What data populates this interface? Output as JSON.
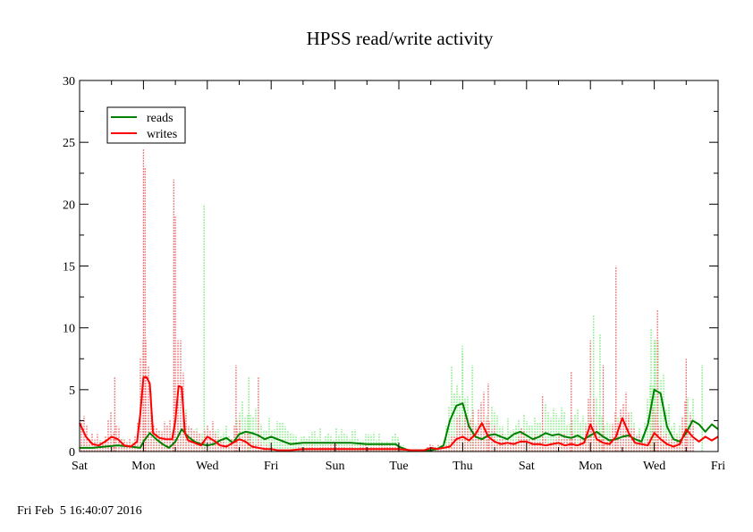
{
  "chart_data": {
    "type": "line",
    "title": "HPSS read/write activity",
    "xlabel": "",
    "ylabel": "",
    "ylim": [
      0,
      30
    ],
    "xlim": [
      0,
      20
    ],
    "x_unit": "days",
    "y_ticks": [
      "0",
      "5",
      "10",
      "15",
      "20",
      "25",
      "30"
    ],
    "x_ticks": [
      {
        "label": "Sat",
        "x": 0
      },
      {
        "label": "Mon",
        "x": 2
      },
      {
        "label": "Wed",
        "x": 4
      },
      {
        "label": "Fri",
        "x": 6
      },
      {
        "label": "Sun",
        "x": 8
      },
      {
        "label": "Tue",
        "x": 10
      },
      {
        "label": "Thu",
        "x": 12
      },
      {
        "label": "Sat",
        "x": 14
      },
      {
        "label": "Mon",
        "x": 16
      },
      {
        "label": "Wed",
        "x": 18
      },
      {
        "label": "Fri",
        "x": 20
      }
    ],
    "legend": {
      "placement": "top-left"
    },
    "series": [
      {
        "name": "reads",
        "color": "#008000",
        "raw_color": "#90ee90",
        "x": [
          0,
          0.4,
          0.8,
          1.2,
          1.6,
          1.9,
          2.0,
          2.2,
          2.4,
          2.6,
          2.8,
          3.0,
          3.2,
          3.4,
          3.6,
          3.8,
          4.0,
          4.2,
          4.4,
          4.6,
          4.8,
          5.0,
          5.2,
          5.4,
          5.6,
          5.8,
          6.0,
          6.2,
          6.4,
          6.6,
          7.0,
          7.5,
          8.0,
          8.5,
          9.0,
          9.5,
          9.9,
          10.0,
          10.3,
          10.5,
          10.8,
          11.0,
          11.2,
          11.4,
          11.6,
          11.8,
          12.0,
          12.2,
          12.4,
          12.6,
          12.8,
          13.0,
          13.2,
          13.4,
          13.6,
          13.8,
          14.0,
          14.2,
          14.4,
          14.6,
          14.8,
          15.0,
          15.2,
          15.4,
          15.6,
          15.8,
          16.0,
          16.2,
          16.4,
          16.6,
          16.8,
          17.0,
          17.2,
          17.4,
          17.6,
          17.8,
          18.0,
          18.2,
          18.4,
          18.6,
          18.8,
          19.0,
          19.2,
          19.4,
          19.6,
          19.8,
          20.0
        ],
        "y": [
          0.3,
          0.3,
          0.4,
          0.5,
          0.4,
          0.3,
          0.8,
          1.5,
          1.0,
          0.6,
          0.3,
          0.8,
          1.8,
          1.2,
          0.8,
          0.6,
          0.5,
          0.6,
          0.9,
          1.1,
          0.7,
          1.4,
          1.6,
          1.5,
          1.3,
          1.0,
          1.2,
          1.0,
          0.8,
          0.6,
          0.7,
          0.7,
          0.7,
          0.7,
          0.6,
          0.6,
          0.6,
          0.4,
          0.1,
          0.1,
          0.1,
          0.1,
          0.2,
          0.5,
          2.5,
          3.7,
          3.9,
          2.0,
          1.2,
          1.0,
          1.3,
          1.4,
          1.2,
          1.0,
          1.4,
          1.6,
          1.3,
          1.0,
          1.2,
          1.5,
          1.3,
          1.4,
          1.2,
          1.1,
          1.3,
          1.0,
          1.3,
          1.6,
          1.2,
          0.9,
          1.0,
          1.2,
          1.3,
          1.0,
          0.8,
          2.2,
          5.0,
          4.7,
          2.0,
          1.0,
          0.8,
          1.5,
          2.5,
          2.2,
          1.6,
          2.2,
          1.8
        ]
      },
      {
        "name": "writes",
        "color": "#ff0000",
        "raw_color": "#f08080",
        "x": [
          0,
          0.2,
          0.4,
          0.6,
          0.8,
          1.0,
          1.2,
          1.4,
          1.6,
          1.8,
          1.9,
          2.0,
          2.1,
          2.2,
          2.3,
          2.5,
          2.7,
          2.9,
          3.0,
          3.1,
          3.2,
          3.3,
          3.4,
          3.6,
          3.8,
          4.0,
          4.2,
          4.4,
          4.6,
          4.8,
          5.0,
          5.2,
          5.4,
          5.6,
          5.8,
          6.0,
          6.2,
          6.6,
          7.0,
          7.5,
          8.0,
          8.5,
          9.0,
          9.5,
          10.0,
          10.4,
          10.8,
          11.0,
          11.2,
          11.4,
          11.6,
          11.8,
          12.0,
          12.2,
          12.4,
          12.6,
          12.8,
          13.0,
          13.2,
          13.4,
          13.6,
          13.8,
          14.0,
          14.2,
          14.4,
          14.6,
          14.8,
          15.0,
          15.2,
          15.4,
          15.6,
          15.8,
          16.0,
          16.2,
          16.4,
          16.6,
          16.8,
          17.0,
          17.2,
          17.4,
          17.6,
          17.8,
          18.0,
          18.2,
          18.4,
          18.6,
          18.8,
          19.0,
          19.2,
          19.4,
          19.6,
          19.8,
          20.0
        ],
        "y": [
          2.3,
          1.2,
          0.6,
          0.5,
          0.8,
          1.2,
          1.0,
          0.5,
          0.4,
          0.8,
          3.0,
          6.0,
          6.0,
          5.5,
          1.5,
          1.1,
          1.0,
          1.0,
          2.5,
          5.3,
          5.2,
          1.5,
          0.9,
          0.7,
          0.5,
          1.2,
          0.9,
          0.5,
          0.4,
          0.7,
          1.0,
          0.8,
          0.4,
          0.3,
          0.2,
          0.2,
          0.1,
          0.1,
          0.2,
          0.2,
          0.2,
          0.2,
          0.2,
          0.2,
          0.2,
          0.1,
          0.1,
          0.3,
          0.2,
          0.3,
          0.4,
          1.0,
          1.2,
          0.9,
          1.4,
          2.3,
          1.2,
          0.8,
          0.6,
          0.7,
          0.6,
          0.8,
          0.8,
          0.6,
          0.6,
          0.5,
          0.6,
          0.7,
          0.5,
          0.6,
          0.5,
          0.7,
          2.2,
          1.0,
          0.7,
          0.6,
          1.2,
          2.7,
          1.5,
          0.7,
          0.6,
          0.5,
          1.5,
          1.0,
          0.6,
          0.4,
          0.6,
          1.8,
          1.2,
          0.8,
          1.2,
          0.9,
          1.2
        ]
      }
    ],
    "raw_spikes": {
      "writes": [
        {
          "x": 2.0,
          "y": 24.5
        },
        {
          "x": 2.05,
          "y": 23.0
        },
        {
          "x": 2.95,
          "y": 22.0
        },
        {
          "x": 3.0,
          "y": 19.0
        },
        {
          "x": 1.1,
          "y": 6.0
        },
        {
          "x": 4.9,
          "y": 7.0
        },
        {
          "x": 5.6,
          "y": 6.0
        },
        {
          "x": 15.4,
          "y": 6.5
        },
        {
          "x": 16.0,
          "y": 9.0
        },
        {
          "x": 16.4,
          "y": 7.0
        },
        {
          "x": 16.8,
          "y": 15.0
        },
        {
          "x": 18.1,
          "y": 11.5
        },
        {
          "x": 19.0,
          "y": 7.5
        },
        {
          "x": 12.8,
          "y": 5.5
        },
        {
          "x": 14.5,
          "y": 4.5
        }
      ],
      "reads": [
        {
          "x": 3.9,
          "y": 20.0
        },
        {
          "x": 12.0,
          "y": 8.0
        },
        {
          "x": 12.3,
          "y": 7.0
        },
        {
          "x": 16.1,
          "y": 11.0
        },
        {
          "x": 17.9,
          "y": 10.0
        },
        {
          "x": 18.0,
          "y": 9.0
        },
        {
          "x": 19.5,
          "y": 7.0
        },
        {
          "x": 16.3,
          "y": 9.5
        },
        {
          "x": 5.3,
          "y": 6.0
        }
      ]
    }
  },
  "footer": {
    "timestamp": "Fri Feb  5 16:40:07 2016"
  }
}
